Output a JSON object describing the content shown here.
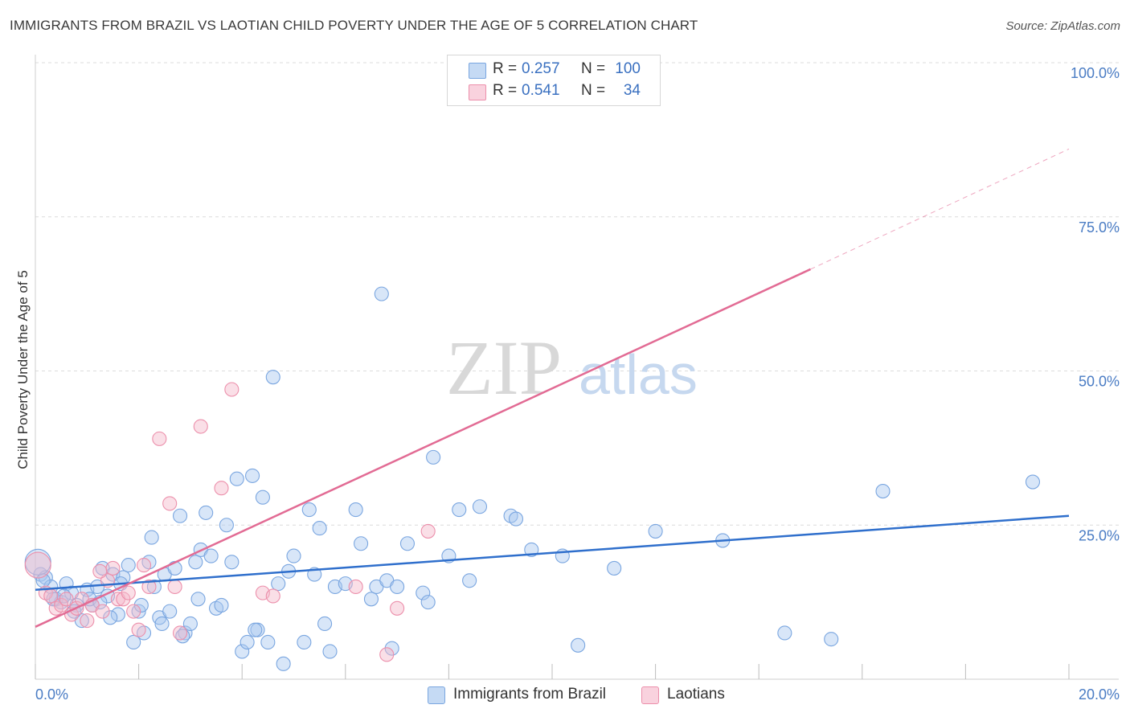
{
  "header": {
    "title": "IMMIGRANTS FROM BRAZIL VS LAOTIAN CHILD POVERTY UNDER THE AGE OF 5 CORRELATION CHART",
    "source": "Source: ZipAtlas.com"
  },
  "watermark": {
    "zip": "ZIP",
    "atlas": "atlas"
  },
  "legend_top": {
    "rows": [
      {
        "r_label": "R =",
        "r_value": "0.257",
        "n_label": "N =",
        "n_value": "100",
        "color": "#a9c7ef"
      },
      {
        "r_label": "R =",
        "r_value": "0.541",
        "n_label": "N =",
        "n_value": "34",
        "color": "#f5b8ca"
      }
    ]
  },
  "legend_bottom": {
    "items": [
      {
        "label": "Immigrants from Brazil",
        "color": "#a9c7ef"
      },
      {
        "label": "Laotians",
        "color": "#f5b8ca"
      }
    ]
  },
  "chart_data": {
    "type": "scatter",
    "title": "IMMIGRANTS FROM BRAZIL VS LAOTIAN CHILD POVERTY UNDER THE AGE OF 5 CORRELATION CHART",
    "xlabel": "",
    "ylabel": "Child Poverty Under the Age of 5",
    "xlim": [
      0,
      20
    ],
    "ylim": [
      0,
      100
    ],
    "x_tick_labels": [
      "0.0%",
      "20.0%"
    ],
    "y_ticks": [
      {
        "value": 25,
        "label": "25.0%"
      },
      {
        "value": 50,
        "label": "50.0%"
      },
      {
        "value": 75,
        "label": "75.0%"
      },
      {
        "value": 100,
        "label": "100.0%"
      }
    ],
    "series": [
      {
        "name": "Immigrants from Brazil",
        "color": "#7aa6e0",
        "fill": "#a9c7ef",
        "line_color": "#2f6fcc",
        "trend": {
          "x0": 0,
          "y0": 14.5,
          "x1": 20,
          "y1": 26.5
        },
        "points": [
          [
            0.1,
            17
          ],
          [
            0.2,
            16.5
          ],
          [
            0.3,
            15
          ],
          [
            0.4,
            13
          ],
          [
            0.5,
            12.5
          ],
          [
            0.6,
            15.5
          ],
          [
            0.7,
            14
          ],
          [
            0.8,
            12
          ],
          [
            0.9,
            9.5
          ],
          [
            1.0,
            14.5
          ],
          [
            1.1,
            12
          ],
          [
            1.2,
            15
          ],
          [
            1.3,
            18
          ],
          [
            1.4,
            13.5
          ],
          [
            1.5,
            17
          ],
          [
            1.6,
            10.5
          ],
          [
            1.7,
            16.5
          ],
          [
            1.8,
            18.5
          ],
          [
            1.9,
            6
          ],
          [
            2.0,
            11
          ],
          [
            2.1,
            7.5
          ],
          [
            2.2,
            19
          ],
          [
            2.25,
            23
          ],
          [
            2.3,
            15
          ],
          [
            2.4,
            10
          ],
          [
            2.5,
            17
          ],
          [
            2.6,
            11
          ],
          [
            2.7,
            18
          ],
          [
            2.8,
            26.5
          ],
          [
            2.9,
            7.5
          ],
          [
            3.0,
            9
          ],
          [
            3.1,
            19
          ],
          [
            3.2,
            21
          ],
          [
            3.3,
            27
          ],
          [
            3.4,
            20
          ],
          [
            3.5,
            11.5
          ],
          [
            3.6,
            12
          ],
          [
            3.7,
            25
          ],
          [
            3.8,
            19
          ],
          [
            3.9,
            32.5
          ],
          [
            4.0,
            4.5
          ],
          [
            4.1,
            6
          ],
          [
            4.2,
            33
          ],
          [
            4.3,
            8
          ],
          [
            4.4,
            29.5
          ],
          [
            4.5,
            6
          ],
          [
            4.6,
            49
          ],
          [
            4.7,
            15.5
          ],
          [
            4.8,
            2.5
          ],
          [
            4.9,
            17.5
          ],
          [
            5.0,
            20
          ],
          [
            5.2,
            6
          ],
          [
            5.3,
            27.5
          ],
          [
            5.4,
            17
          ],
          [
            5.5,
            24.5
          ],
          [
            5.6,
            9
          ],
          [
            5.7,
            4.5
          ],
          [
            5.8,
            15
          ],
          [
            6.0,
            15.5
          ],
          [
            6.2,
            27.5
          ],
          [
            6.3,
            22
          ],
          [
            6.5,
            13
          ],
          [
            6.6,
            15
          ],
          [
            6.7,
            62.5
          ],
          [
            6.8,
            16
          ],
          [
            6.9,
            5
          ],
          [
            7.0,
            15
          ],
          [
            7.2,
            22
          ],
          [
            7.5,
            14
          ],
          [
            7.6,
            12.5
          ],
          [
            7.7,
            36
          ],
          [
            8.0,
            20
          ],
          [
            8.2,
            27.5
          ],
          [
            8.4,
            16
          ],
          [
            8.6,
            28
          ],
          [
            9.2,
            26.5
          ],
          [
            9.3,
            26
          ],
          [
            9.6,
            21
          ],
          [
            10.2,
            20
          ],
          [
            10.5,
            5.5
          ],
          [
            11.2,
            18
          ],
          [
            12.0,
            24
          ],
          [
            13.3,
            22.5
          ],
          [
            14.5,
            7.5
          ],
          [
            15.4,
            6.5
          ],
          [
            16.4,
            30.5
          ],
          [
            19.3,
            32
          ],
          [
            0.15,
            16
          ],
          [
            0.35,
            13
          ],
          [
            0.55,
            13.5
          ],
          [
            0.75,
            11
          ],
          [
            1.05,
            13
          ],
          [
            1.25,
            12.5
          ],
          [
            1.45,
            10
          ],
          [
            1.65,
            15.5
          ],
          [
            2.05,
            12
          ],
          [
            2.45,
            9
          ],
          [
            2.85,
            7
          ],
          [
            3.15,
            13
          ],
          [
            4.25,
            8
          ]
        ],
        "big_points": [
          [
            0.05,
            19
          ]
        ]
      },
      {
        "name": "Laotians",
        "color": "#ec8fab",
        "fill": "#f5b8ca",
        "line_color": "#e26b94",
        "trend": {
          "x0": 0,
          "y0": 8.5,
          "x1": 15.0,
          "y1": 66.5
        },
        "trend_dashed": {
          "x0": 15.0,
          "y0": 66.5,
          "x1": 20,
          "y1": 86
        },
        "points": [
          [
            0.2,
            14
          ],
          [
            0.3,
            13.5
          ],
          [
            0.4,
            11.5
          ],
          [
            0.5,
            12
          ],
          [
            0.6,
            13
          ],
          [
            0.7,
            10.5
          ],
          [
            0.8,
            11.5
          ],
          [
            0.9,
            13
          ],
          [
            1.0,
            9.5
          ],
          [
            1.1,
            12
          ],
          [
            1.3,
            11
          ],
          [
            1.4,
            16
          ],
          [
            1.5,
            18
          ],
          [
            1.6,
            13
          ],
          [
            1.7,
            13
          ],
          [
            1.8,
            14
          ],
          [
            1.9,
            11
          ],
          [
            2.0,
            8
          ],
          [
            2.1,
            18.5
          ],
          [
            2.2,
            15
          ],
          [
            2.4,
            39
          ],
          [
            2.6,
            28.5
          ],
          [
            2.7,
            15
          ],
          [
            2.8,
            7.5
          ],
          [
            3.2,
            41
          ],
          [
            3.6,
            31
          ],
          [
            3.8,
            47
          ],
          [
            4.4,
            14
          ],
          [
            4.6,
            13.5
          ],
          [
            6.2,
            15
          ],
          [
            6.8,
            4
          ],
          [
            7.0,
            11.5
          ],
          [
            7.6,
            24
          ],
          [
            1.25,
            17.5
          ]
        ],
        "big_points": [
          [
            0.05,
            18.5
          ]
        ]
      }
    ]
  }
}
